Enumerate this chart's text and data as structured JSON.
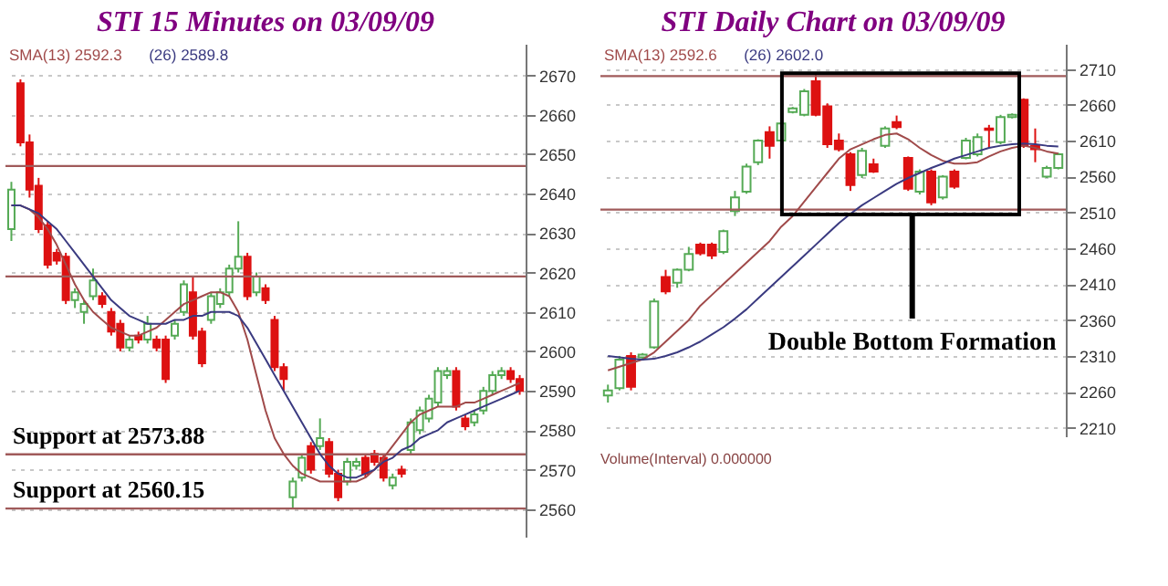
{
  "chart_data": [
    {
      "type": "candlestick",
      "title": "STI 15 Minutes on 03/09/09",
      "categories": [
        null,
        null,
        null,
        null,
        null,
        null,
        null,
        null,
        null,
        null,
        null,
        null,
        null,
        null,
        null,
        null,
        null,
        null,
        null,
        null,
        null,
        null,
        null,
        null,
        null,
        null,
        null,
        null,
        null,
        null,
        null,
        null,
        null,
        null,
        null,
        null,
        null,
        null,
        null,
        null,
        null,
        null,
        null,
        null,
        null,
        null,
        null,
        null,
        null,
        null,
        null,
        null,
        null,
        null,
        null,
        null,
        null
      ],
      "ohlc": [
        [
          2631,
          2643,
          2628,
          2641
        ],
        [
          2668,
          2669,
          2652,
          2653
        ],
        [
          2653,
          2655,
          2639,
          2641
        ],
        [
          2642,
          2644,
          2630,
          2631
        ],
        [
          2632,
          2633,
          2621,
          2622
        ],
        [
          2625,
          2626,
          2622,
          2623
        ],
        [
          2624,
          2625,
          2612,
          2613
        ],
        [
          2613,
          2616,
          2611,
          2615
        ],
        [
          2610,
          2613,
          2607,
          2612
        ],
        [
          2614,
          2621,
          2613,
          2618
        ],
        [
          2614,
          2615,
          2611,
          2612
        ],
        [
          2610,
          2611,
          2604,
          2605
        ],
        [
          2607,
          2608,
          2600,
          2601
        ],
        [
          2601,
          2604,
          2600,
          2603
        ],
        [
          2604,
          2605,
          2602,
          2603
        ],
        [
          2603,
          2609,
          2602,
          2607
        ],
        [
          2603,
          2604,
          2600,
          2601
        ],
        [
          2603,
          2604,
          2592,
          2593
        ],
        [
          2604,
          2608,
          2603,
          2607
        ],
        [
          2610,
          2618,
          2609,
          2617
        ],
        [
          2615,
          2619,
          2603,
          2604
        ],
        [
          2605,
          2606,
          2596,
          2597
        ],
        [
          2608,
          2615,
          2607,
          2614
        ],
        [
          2612,
          2616,
          2611,
          2615
        ],
        [
          2615,
          2622,
          2614,
          2621
        ],
        [
          2621,
          2633,
          2620,
          2624
        ],
        [
          2624,
          2625,
          2613,
          2614
        ],
        [
          2615,
          2620,
          2614,
          2619
        ],
        [
          2616,
          2617,
          2612,
          2613
        ],
        [
          2608,
          2609,
          2595,
          2596
        ],
        [
          2596,
          2597,
          2590,
          2593
        ],
        [
          2563,
          2568,
          2560,
          2567
        ],
        [
          2568,
          2574,
          2567,
          2573
        ],
        [
          2576,
          2577,
          2569,
          2570
        ],
        [
          2576,
          2583,
          2575,
          2578
        ],
        [
          2577,
          2578,
          2568,
          2569
        ],
        [
          2569,
          2570,
          2562,
          2563
        ],
        [
          2567,
          2573,
          2566,
          2572
        ],
        [
          2571,
          2573,
          2570,
          2572
        ],
        [
          2573,
          2574,
          2568,
          2569
        ],
        [
          2574,
          2575,
          2571,
          2572
        ],
        [
          2573,
          2574,
          2567,
          2568
        ],
        [
          2566,
          2569,
          2565,
          2568
        ],
        [
          2570,
          2571,
          2568,
          2569
        ],
        [
          2575,
          2583,
          2574,
          2582
        ],
        [
          2580,
          2586,
          2579,
          2585
        ],
        [
          2583,
          2589,
          2582,
          2588
        ],
        [
          2587,
          2596,
          2586,
          2595
        ],
        [
          2594,
          2596,
          2593,
          2595
        ],
        [
          2595,
          2596,
          2585,
          2586
        ],
        [
          2583,
          2584,
          2580,
          2581
        ],
        [
          2582,
          2585,
          2581,
          2584
        ],
        [
          2585,
          2591,
          2584,
          2590
        ],
        [
          2590,
          2595,
          2589,
          2594
        ],
        [
          2594,
          2596,
          2593,
          2595
        ],
        [
          2595,
          2596,
          2592,
          2593
        ],
        [
          2593,
          2594,
          2589,
          2590
        ]
      ],
      "colors": [
        "#55aa55",
        "#dd1111",
        "#dd1111",
        "#dd1111",
        "#dd1111",
        "#dd1111",
        "#dd1111",
        "#55aa55",
        "#55aa55",
        "#55aa55",
        "#dd1111",
        "#dd1111",
        "#dd1111",
        "#55aa55",
        "#dd1111",
        "#55aa55",
        "#dd1111",
        "#dd1111",
        "#55aa55",
        "#55aa55",
        "#dd1111",
        "#dd1111",
        "#55aa55",
        "#55aa55",
        "#55aa55",
        "#55aa55",
        "#dd1111",
        "#55aa55",
        "#dd1111",
        "#dd1111",
        "#dd1111",
        "#55aa55",
        "#55aa55",
        "#dd1111",
        "#55aa55",
        "#dd1111",
        "#dd1111",
        "#55aa55",
        "#55aa55",
        "#dd1111",
        "#dd1111",
        "#dd1111",
        "#55aa55",
        "#dd1111",
        "#55aa55",
        "#55aa55",
        "#55aa55",
        "#55aa55",
        "#55aa55",
        "#dd1111",
        "#dd1111",
        "#55aa55",
        "#55aa55",
        "#55aa55",
        "#55aa55",
        "#dd1111",
        "#dd1111"
      ],
      "series": [
        {
          "type": "line",
          "name": "SMA(13) 2592.3",
          "color": "#a04a4a",
          "values": [
            2637,
            2637,
            2636,
            2634,
            2631,
            2627,
            2622,
            2617,
            2613,
            2610,
            2608,
            2606,
            2605,
            2604,
            2604,
            2605,
            2606,
            2608,
            2610,
            2612,
            2613,
            2614,
            2615,
            2615,
            2614,
            2610,
            2603,
            2594,
            2585,
            2578,
            2574,
            2571,
            2569,
            2568,
            2567,
            2567,
            2567,
            2567,
            2567,
            2568,
            2570,
            2573,
            2576,
            2579,
            2582,
            2584,
            2585,
            2586,
            2586,
            2586,
            2587,
            2587,
            2588,
            2589,
            2590,
            2591,
            2592
          ]
        },
        {
          "type": "line",
          "name": "(26) 2589.8",
          "color": "#3a3a80",
          "values": [
            2637,
            2637,
            2636,
            2635,
            2633,
            2631,
            2628,
            2625,
            2622,
            2619,
            2616,
            2613,
            2611,
            2609,
            2608,
            2607,
            2607,
            2607,
            2608,
            2608,
            2609,
            2609,
            2610,
            2610,
            2610,
            2609,
            2606,
            2602,
            2598,
            2594,
            2590,
            2586,
            2582,
            2578,
            2574,
            2571,
            2569,
            2568,
            2568,
            2569,
            2570,
            2572,
            2573,
            2575,
            2576,
            2578,
            2579,
            2580,
            2582,
            2583,
            2584,
            2585,
            2586,
            2587,
            2588,
            2589,
            2590
          ]
        }
      ],
      "ylim": [
        2553,
        2678
      ],
      "yticks": [
        2560,
        2570,
        2580,
        2590,
        2600,
        2610,
        2620,
        2630,
        2640,
        2650,
        2660,
        2670
      ],
      "ref_lines": [
        {
          "axis": "y",
          "value": 2647,
          "color": "#a05a5a"
        },
        {
          "axis": "y",
          "value": 2619,
          "color": "#a05a5a"
        },
        {
          "axis": "y",
          "value": 2573.88,
          "label": "Support at 2573.88",
          "color": "#a05a5a"
        },
        {
          "axis": "y",
          "value": 2560.15,
          "label": "Support at 2560.15",
          "color": "#a05a5a"
        }
      ],
      "grid": "y",
      "legend": "top left",
      "tick_labels": "y"
    },
    {
      "type": "candlestick",
      "title": "STI Daily Chart on 03/09/09",
      "categories": [
        null,
        null,
        null,
        null,
        null,
        null,
        null,
        null,
        null,
        null,
        null,
        null,
        null,
        null,
        null,
        null,
        null,
        null,
        null,
        null,
        null,
        null,
        null,
        null,
        null,
        null,
        null,
        null,
        null,
        null,
        null,
        null,
        null,
        null,
        null,
        null,
        null,
        null,
        null,
        null
      ],
      "ohlc": [
        [
          2255,
          2270,
          2245,
          2262
        ],
        [
          2265,
          2310,
          2262,
          2305
        ],
        [
          2310,
          2315,
          2262,
          2267
        ],
        [
          2308,
          2314,
          2305,
          2312
        ],
        [
          2322,
          2390,
          2320,
          2386
        ],
        [
          2420,
          2430,
          2396,
          2400
        ],
        [
          2412,
          2432,
          2405,
          2430
        ],
        [
          2430,
          2462,
          2428,
          2452
        ],
        [
          2465,
          2468,
          2450,
          2453
        ],
        [
          2465,
          2468,
          2445,
          2450
        ],
        [
          2455,
          2486,
          2452,
          2484
        ],
        [
          2512,
          2540,
          2505,
          2531
        ],
        [
          2539,
          2578,
          2536,
          2574
        ],
        [
          2580,
          2612,
          2576,
          2610
        ],
        [
          2622,
          2630,
          2585,
          2603
        ],
        [
          2610,
          2640,
          2606,
          2634
        ],
        [
          2650,
          2657,
          2648,
          2655
        ],
        [
          2646,
          2682,
          2644,
          2679
        ],
        [
          2693,
          2705,
          2644,
          2646
        ],
        [
          2658,
          2662,
          2600,
          2605
        ],
        [
          2610,
          2620,
          2595,
          2598
        ],
        [
          2591,
          2594,
          2540,
          2548
        ],
        [
          2562,
          2600,
          2558,
          2596
        ],
        [
          2577,
          2585,
          2565,
          2567
        ],
        [
          2603,
          2630,
          2600,
          2627
        ],
        [
          2636,
          2645,
          2626,
          2629
        ],
        [
          2586,
          2588,
          2540,
          2543
        ],
        [
          2539,
          2570,
          2535,
          2567
        ],
        [
          2567,
          2570,
          2520,
          2524
        ],
        [
          2531,
          2562,
          2528,
          2560
        ],
        [
          2567,
          2570,
          2543,
          2546
        ],
        [
          2586,
          2614,
          2584,
          2610
        ],
        [
          2591,
          2620,
          2588,
          2615
        ],
        [
          2625,
          2632,
          2600,
          2627
        ],
        [
          2608,
          2646,
          2605,
          2643
        ],
        [
          2643,
          2648,
          2641,
          2646
        ],
        [
          2667,
          2669,
          2600,
          2603
        ],
        [
          2603,
          2627,
          2580,
          2598
        ],
        [
          2560,
          2575,
          2558,
          2572
        ],
        [
          2572,
          2593,
          2570,
          2591
        ]
      ],
      "colors": [
        "#55aa55",
        "#55aa55",
        "#dd1111",
        "#55aa55",
        "#55aa55",
        "#dd1111",
        "#55aa55",
        "#55aa55",
        "#dd1111",
        "#dd1111",
        "#55aa55",
        "#55aa55",
        "#55aa55",
        "#55aa55",
        "#dd1111",
        "#55aa55",
        "#55aa55",
        "#55aa55",
        "#dd1111",
        "#dd1111",
        "#dd1111",
        "#dd1111",
        "#55aa55",
        "#dd1111",
        "#55aa55",
        "#dd1111",
        "#dd1111",
        "#55aa55",
        "#dd1111",
        "#55aa55",
        "#dd1111",
        "#55aa55",
        "#55aa55",
        "#dd1111",
        "#55aa55",
        "#55aa55",
        "#dd1111",
        "#dd1111",
        "#55aa55",
        "#55aa55"
      ],
      "series": [
        {
          "type": "line",
          "name": "SMA(13) 2592.6",
          "color": "#a04a4a",
          "values": [
            2290,
            2295,
            2300,
            2305,
            2315,
            2330,
            2345,
            2360,
            2380,
            2395,
            2410,
            2425,
            2440,
            2455,
            2470,
            2490,
            2505,
            2525,
            2545,
            2565,
            2585,
            2598,
            2605,
            2612,
            2618,
            2620,
            2612,
            2600,
            2590,
            2582,
            2578,
            2578,
            2580,
            2588,
            2595,
            2600,
            2603,
            2600,
            2595,
            2592
          ]
        },
        {
          "type": "line",
          "name": "(26) 2602.0",
          "color": "#3a3a80",
          "values": [
            2310,
            2308,
            2306,
            2305,
            2306,
            2310,
            2315,
            2322,
            2330,
            2340,
            2350,
            2362,
            2375,
            2390,
            2405,
            2420,
            2435,
            2450,
            2465,
            2480,
            2495,
            2508,
            2520,
            2530,
            2540,
            2550,
            2558,
            2565,
            2572,
            2578,
            2585,
            2590,
            2595,
            2600,
            2603,
            2605,
            2606,
            2605,
            2603,
            2602
          ]
        }
      ],
      "ylim": [
        2198,
        2745
      ],
      "yticks": [
        2210,
        2260,
        2310,
        2360,
        2410,
        2460,
        2510,
        2560,
        2610,
        2660,
        2710
      ],
      "ref_lines": [
        {
          "axis": "y",
          "value": 2700,
          "color": "#a05a5a"
        },
        {
          "axis": "y",
          "value": 2514,
          "color": "#a05a5a"
        }
      ],
      "annotations": [
        "Double Bottom Formation",
        "Volume(Interval) 0.000000"
      ],
      "grid": "y",
      "legend": "top left",
      "tick_labels": "y"
    }
  ]
}
